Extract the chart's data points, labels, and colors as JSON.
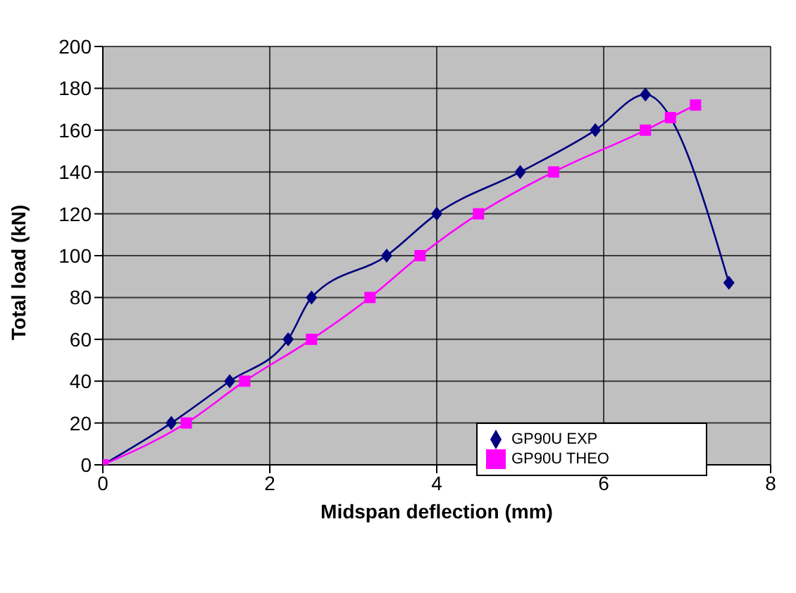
{
  "chart_data": {
    "type": "line",
    "xlabel": "Midspan deflection (mm)",
    "ylabel": "Total load (kN)",
    "xlim": [
      0,
      8
    ],
    "xticks": [
      0,
      2,
      4,
      6,
      8
    ],
    "ylim": [
      0,
      200
    ],
    "yticks": [
      0,
      20,
      40,
      60,
      80,
      100,
      120,
      140,
      160,
      180,
      200
    ],
    "grid": true,
    "legend": "bottom right",
    "line_style": "solid",
    "series": [
      {
        "name": "GP90U EXP",
        "color": "#000080",
        "marker": "diamond",
        "x": [
          0,
          0.82,
          1.52,
          2.22,
          2.5,
          3.4,
          4.0,
          5.0,
          5.9,
          6.5,
          7.5
        ],
        "values": [
          0,
          20,
          40,
          60,
          80,
          100,
          120,
          140,
          160,
          177,
          87
        ]
      },
      {
        "name": "GP90U THEO",
        "color": "#ff00ff",
        "marker": "square",
        "x": [
          0,
          1.0,
          1.7,
          2.5,
          3.2,
          3.8,
          4.5,
          5.4,
          6.5,
          6.8,
          7.1
        ],
        "values": [
          0,
          20,
          40,
          60,
          80,
          100,
          120,
          140,
          160,
          166,
          172
        ]
      }
    ]
  }
}
